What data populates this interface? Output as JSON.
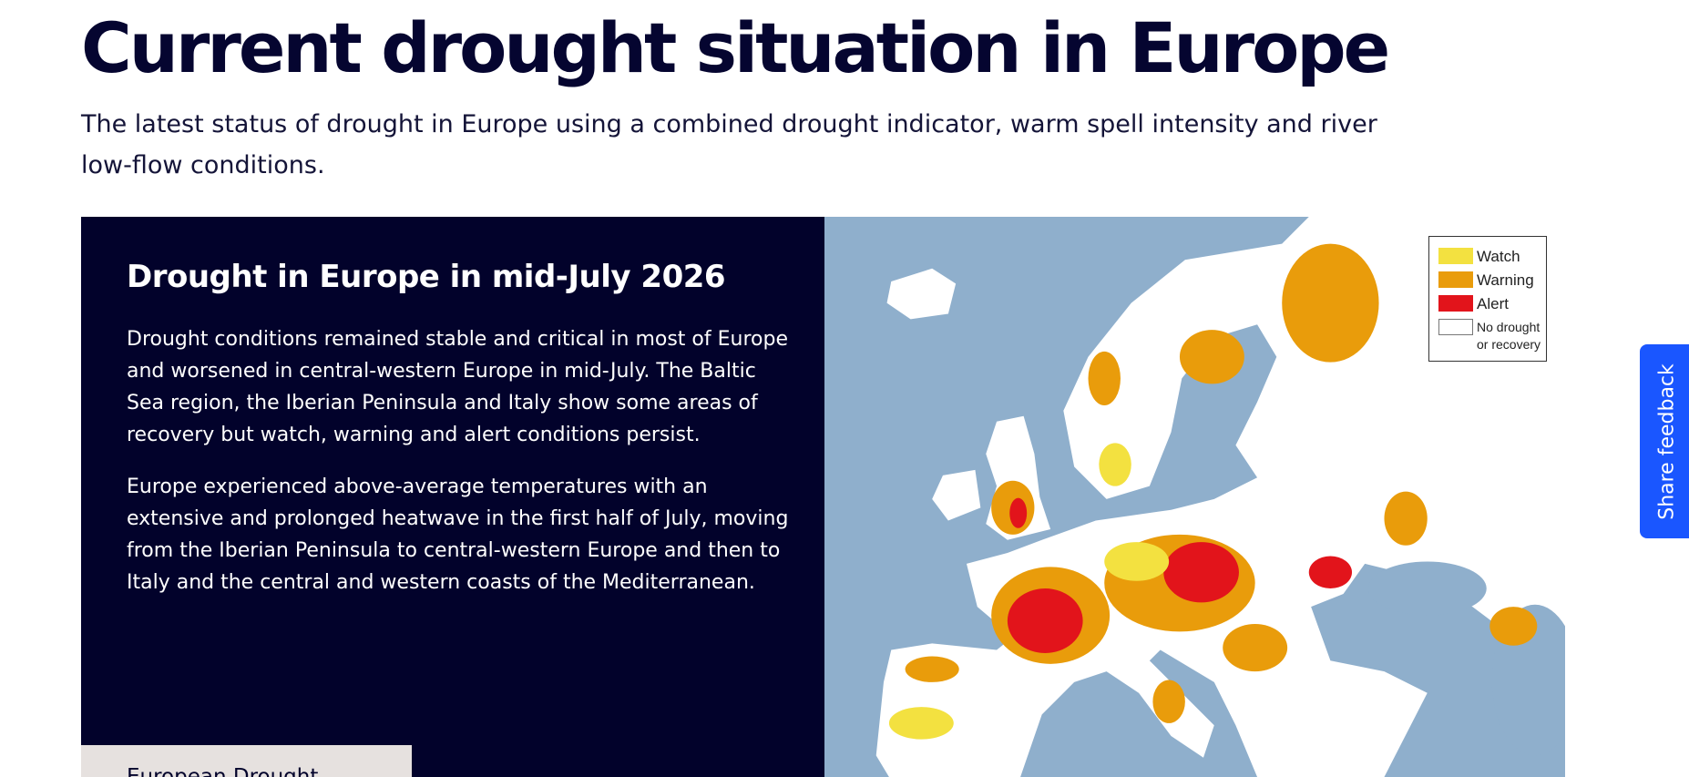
{
  "header": {
    "title": "Current drought situation in Europe",
    "subtitle": "The latest status of drought in Europe using a combined drought indicator, warm spell intensity and river low-flow conditions."
  },
  "panel": {
    "heading": "Drought in Europe in mid-July 2026",
    "paragraphs": [
      "Drought conditions remained stable and critical in most of Europe and worsened in central-western Europe in mid-July. The Baltic Sea region, the Iberian Peninsula and Italy show some areas of recovery but watch, warning and alert conditions persist.",
      "Europe experienced above-average temperatures with an extensive and prolonged heatwave in the first half of July, moving from the Iberian Peninsula to central-western Europe and then to Italy and the central and western coasts of the Mediterranean."
    ],
    "button": "European Drought"
  },
  "map": {
    "legend": [
      {
        "label": "Watch",
        "color": "#f3e140"
      },
      {
        "label": "Warning",
        "color": "#e99c0b"
      },
      {
        "label": "Alert",
        "color": "#e2141b"
      },
      {
        "label": "No drought or recovery",
        "color": "#ffffff"
      }
    ]
  },
  "feedback": "Share feedback"
}
